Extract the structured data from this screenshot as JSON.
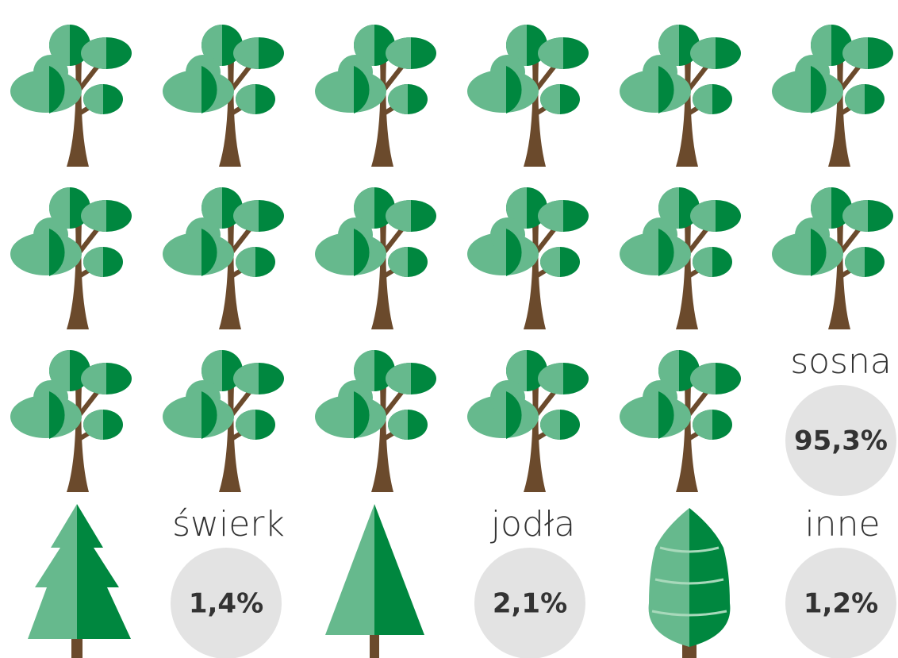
{
  "species": [
    {
      "name": "sosna",
      "share": "95,3%"
    },
    {
      "name": "świerk",
      "share": "1,4%"
    },
    {
      "name": "jodła",
      "share": "2,1%"
    },
    {
      "name": "inne",
      "share": "1,2%"
    }
  ]
}
